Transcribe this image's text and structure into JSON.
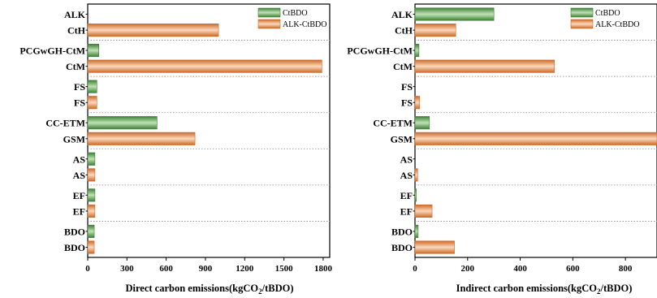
{
  "colors": {
    "ctbdo_dark": "#3f7f38",
    "ctbdo_light": "#bfe3b4",
    "alk_dark": "#cc6a28",
    "alk_light": "#fbd8bd"
  },
  "chart_data": [
    {
      "type": "bar",
      "orientation": "horizontal",
      "xlabel_prefix": "Direct carbon emissions(kgCO",
      "xlabel_sub": "2",
      "xlabel_suffix": "/tBDO)",
      "xlim": [
        0,
        1850
      ],
      "xticks": [
        0,
        300,
        600,
        900,
        1200,
        1500,
        1800
      ],
      "grid": "dotted-group-separators",
      "legend_position": "top-right",
      "series": [
        {
          "name": "CtBDO",
          "key": "ctbdo"
        },
        {
          "name": "ALK-CtBDO",
          "key": "alk"
        }
      ],
      "groups": [
        {
          "ctbdo_label": "ALK",
          "ctbdo": 0,
          "alk_label": "CtH",
          "alk": 1000
        },
        {
          "ctbdo_label": "PCGwGH-CtM",
          "ctbdo": 85,
          "alk_label": "CtM",
          "alk": 1790
        },
        {
          "ctbdo_label": "FS",
          "ctbdo": 70,
          "alk_label": "FS",
          "alk": 70
        },
        {
          "ctbdo_label": "CC-ETM",
          "ctbdo": 530,
          "alk_label": "GSM",
          "alk": 820
        },
        {
          "ctbdo_label": "AS",
          "ctbdo": 55,
          "alk_label": "AS",
          "alk": 55
        },
        {
          "ctbdo_label": "EF",
          "ctbdo": 55,
          "alk_label": "EF",
          "alk": 55
        },
        {
          "ctbdo_label": "BDO",
          "ctbdo": 50,
          "alk_label": "BDO",
          "alk": 50
        }
      ]
    },
    {
      "type": "bar",
      "orientation": "horizontal",
      "xlabel_prefix": "Indirect carbon emissions(kgCO",
      "xlabel_sub": "2",
      "xlabel_suffix": "/tBDO)",
      "xlim": [
        0,
        920
      ],
      "xticks": [
        0,
        200,
        400,
        600,
        800
      ],
      "grid": "dotted-group-separators",
      "legend_position": "top-right",
      "series": [
        {
          "name": "CtBDO",
          "key": "ctbdo"
        },
        {
          "name": "ALK-CtBDO",
          "key": "alk"
        }
      ],
      "groups": [
        {
          "ctbdo_label": "ALK",
          "ctbdo": 300,
          "alk_label": "CtH",
          "alk": 155
        },
        {
          "ctbdo_label": "PCGwGH-CtM",
          "ctbdo": 15,
          "alk_label": "CtM",
          "alk": 530
        },
        {
          "ctbdo_label": "FS",
          "ctbdo": 0,
          "alk_label": "FS",
          "alk": 18
        },
        {
          "ctbdo_label": "CC-ETM",
          "ctbdo": 55,
          "alk_label": "GSM",
          "alk": 920
        },
        {
          "ctbdo_label": "AS",
          "ctbdo": 0,
          "alk_label": "AS",
          "alk": 10
        },
        {
          "ctbdo_label": "EF",
          "ctbdo": 5,
          "alk_label": "EF",
          "alk": 65
        },
        {
          "ctbdo_label": "BDO",
          "ctbdo": 12,
          "alk_label": "BDO",
          "alk": 150
        }
      ]
    }
  ]
}
